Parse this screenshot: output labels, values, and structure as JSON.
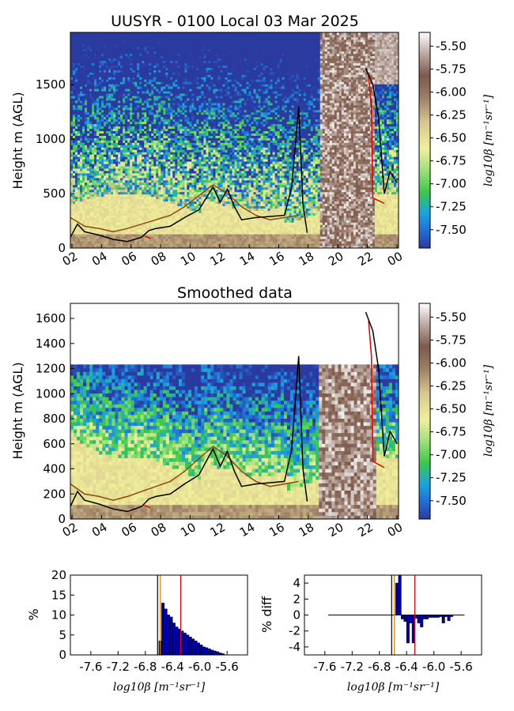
{
  "chart_data": [
    {
      "type": "heatmap",
      "title": "UUSYR - 0100 Local 03 Mar 2025",
      "ylabel": "Height m (AGL)",
      "ylim": [
        0,
        1980
      ],
      "yticks": [
        "0",
        "500",
        "1000",
        "1500"
      ],
      "xticks": [
        "02",
        "04",
        "06",
        "08",
        "10",
        "12",
        "14",
        "16",
        "18",
        "20",
        "22",
        "00"
      ],
      "colorbar": {
        "label": "log10β [m⁻¹sr⁻¹]",
        "range": [
          -7.7,
          -5.35
        ],
        "ticks": [
          "-5.50",
          "-5.75",
          "-6.00",
          "-6.25",
          "-6.50",
          "-6.75",
          "-7.00",
          "-7.25",
          "-7.50"
        ]
      },
      "lines": {
        "black": {
          "x": [
            1,
            1.5,
            2,
            3,
            4,
            5,
            6,
            6.5,
            7,
            8,
            9,
            10,
            11,
            11.5,
            12,
            12.5,
            13,
            14,
            15,
            16,
            16.5,
            17,
            17.3,
            17.6
          ],
          "y": [
            100,
            220,
            150,
            120,
            80,
            60,
            100,
            160,
            180,
            200,
            280,
            350,
            560,
            420,
            540,
            380,
            260,
            280,
            290,
            300,
            550,
            1300,
            400,
            140
          ]
        },
        "brown": {
          "x": [
            1,
            2,
            3,
            4,
            5,
            6,
            7,
            8,
            9,
            10,
            11,
            12,
            13,
            14,
            15,
            16,
            17
          ],
          "y": [
            280,
            200,
            180,
            150,
            180,
            220,
            260,
            300,
            380,
            480,
            580,
            500,
            380,
            300,
            260,
            280,
            300
          ]
        },
        "red": {
          "x": [
            6.2,
            6.6,
            21.9,
            22.1,
            22.2,
            23.0
          ],
          "y": [
            110,
            90,
            1580,
            1300,
            460,
            410
          ]
        }
      }
    },
    {
      "type": "heatmap",
      "title": "Smoothed data",
      "ylabel": "Height m (AGL)",
      "ylim": [
        0,
        1720
      ],
      "yticks": [
        "0",
        "200",
        "400",
        "600",
        "800",
        "1000",
        "1200",
        "1400",
        "1600"
      ],
      "xticks": [
        "02",
        "04",
        "06",
        "08",
        "10",
        "12",
        "14",
        "16",
        "18",
        "20",
        "22",
        "00"
      ],
      "colorbar": {
        "label": "log10β [m⁻¹sr⁻¹]",
        "range": [
          -7.7,
          -5.35
        ],
        "ticks": [
          "-5.50",
          "-5.75",
          "-6.00",
          "-6.25",
          "-6.50",
          "-6.75",
          "-7.00",
          "-7.25",
          "-7.50"
        ]
      }
    },
    {
      "type": "bar",
      "xlabel": "log10β [m⁻¹sr⁻¹]",
      "ylabel": "%",
      "ylim": [
        0,
        20
      ],
      "yticks": [
        "0",
        "5",
        "10",
        "15",
        "20"
      ],
      "xticks": [
        "-7.6",
        "-7.2",
        "-6.8",
        "-6.4",
        "-6.0",
        "-5.6"
      ],
      "xlim": [
        -7.9,
        -5.3
      ],
      "x": [
        -6.58,
        -6.54,
        -6.5,
        -6.46,
        -6.42,
        -6.38,
        -6.34,
        -6.3,
        -6.26,
        -6.22,
        -6.18,
        -6.14,
        -6.1,
        -6.06,
        -6.02,
        -5.98,
        -5.94,
        -5.9,
        -5.86,
        -5.82,
        -5.78,
        -5.74,
        -5.7,
        -5.66
      ],
      "values": [
        3.5,
        13.0,
        11.5,
        10.0,
        9.5,
        8.0,
        7.0,
        6.5,
        6.0,
        5.5,
        5.0,
        4.5,
        4.0,
        3.5,
        3.0,
        2.5,
        2.0,
        1.8,
        1.5,
        1.2,
        1.0,
        0.8,
        0.5,
        0.3
      ],
      "vlines": [
        {
          "x": -6.62,
          "color": "#000000"
        },
        {
          "x": -6.58,
          "color": "#d08000"
        },
        {
          "x": -6.28,
          "color": "#e00000"
        }
      ]
    },
    {
      "type": "bar",
      "xlabel": "log10β [m⁻¹sr⁻¹]",
      "ylabel": "% diff",
      "ylim": [
        -5,
        5
      ],
      "yticks": [
        "4",
        "2",
        "0",
        "-2",
        "-4"
      ],
      "xticks": [
        "-7.6",
        "-7.2",
        "-6.8",
        "-6.4",
        "-6.0",
        "-5.6"
      ],
      "xlim": [
        -7.9,
        -5.3
      ],
      "x": [
        -6.54,
        -6.5,
        -6.46,
        -6.42,
        -6.38,
        -6.34,
        -6.3,
        -6.26,
        -6.22,
        -6.18,
        -6.14,
        -6.1,
        -6.06,
        -6.02,
        -5.98,
        -5.94,
        -5.9,
        -5.86,
        -5.82,
        -5.78,
        -5.74
      ],
      "values": [
        4.0,
        5.0,
        -0.5,
        -0.8,
        -3.5,
        -1.0,
        -3.5,
        -0.4,
        -1.0,
        -1.5,
        -0.5,
        -0.5,
        -0.3,
        -0.3,
        -0.3,
        -0.3,
        -0.2,
        -1.0,
        -0.2,
        -0.7,
        -0.2
      ],
      "baseline": {
        "from": -7.55,
        "to": -5.55
      },
      "vlines": [
        {
          "x": -6.62,
          "color": "#000000"
        },
        {
          "x": -6.58,
          "color": "#d08000"
        },
        {
          "x": -6.28,
          "color": "#e00000"
        }
      ]
    }
  ]
}
